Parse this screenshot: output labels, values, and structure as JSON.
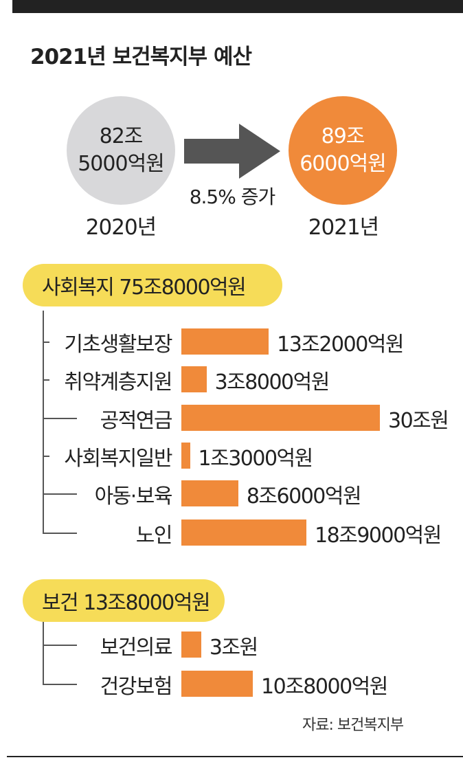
{
  "title": "2021년 보건복지부 예산",
  "budget": {
    "prev": {
      "year": "2020년",
      "line1": "82조",
      "line2": "5000억원"
    },
    "curr": {
      "year": "2021년",
      "line1": "89조",
      "line2": "6000억원"
    },
    "growth": "8.5% 증가"
  },
  "colors": {
    "bar": "#f08a3a",
    "pill": "#f6dc58",
    "prev_circle": "#d8d8da",
    "curr_circle": "#f08a3a"
  },
  "chart_data": [
    {
      "type": "bar",
      "title": "사회복지 75조8000억원",
      "unit": "억원",
      "categories": [
        "기초생활보장",
        "취약계층지원",
        "공적연금",
        "사회복지일반",
        "아동·보육",
        "노인"
      ],
      "values": [
        132000,
        38000,
        300000,
        13000,
        86000,
        189000
      ],
      "value_labels": [
        "13조2000억원",
        "3조8000억원",
        "30조원",
        "1조3000억원",
        "8조6000억원",
        "18조9000억원"
      ]
    },
    {
      "type": "bar",
      "title": "보건 13조8000억원",
      "unit": "억원",
      "categories": [
        "보건의료",
        "건강보험"
      ],
      "values": [
        30000,
        108000
      ],
      "value_labels": [
        "3조원",
        "10조8000억원"
      ]
    }
  ],
  "source": "자료: 보건복지부"
}
